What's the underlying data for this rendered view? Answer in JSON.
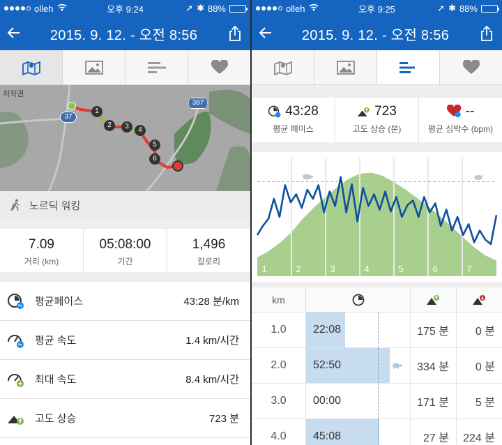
{
  "status_left": {
    "carrier": "olleh",
    "time": "오후 9:24",
    "battery": "88%"
  },
  "status_right": {
    "carrier": "olleh",
    "time": "오후 9:25",
    "battery": "88%"
  },
  "title_left": "2015. 9. 12. - 오전 8:56",
  "title_right": "2015. 9. 12. - 오전 8:56",
  "map": {
    "area_label": "처작권",
    "road_37": "37",
    "road_387": "387",
    "markers": [
      "1",
      "2",
      "3",
      "4",
      "5",
      "6"
    ]
  },
  "activity_type": "노르딕 워킹",
  "summary": [
    {
      "value": "7.09",
      "label": "거리 (km)"
    },
    {
      "value": "05:08:00",
      "label": "기간"
    },
    {
      "value": "1,496",
      "label": "칼로리"
    }
  ],
  "stats": [
    {
      "name": "평균페이스",
      "value": "43:28 분/km"
    },
    {
      "name": "평균 속도",
      "value": "1.4 km/시간"
    },
    {
      "name": "최대 속도",
      "value": "8.4 km/시간"
    },
    {
      "name": "고도 상승",
      "value": "723 분"
    }
  ],
  "metrics": [
    {
      "value": "43:28",
      "label": "평균 페이스"
    },
    {
      "value": "723",
      "label": "고도 상승 (분)"
    },
    {
      "value": "--",
      "label": "평균 심박수 (bpm)"
    }
  ],
  "chart_data": {
    "type": "area",
    "categories": [
      "1",
      "2",
      "3",
      "4",
      "5",
      "6",
      "7"
    ],
    "elevation": [
      0.18,
      0.24,
      0.32,
      0.42,
      0.55,
      0.66,
      0.76,
      0.85,
      0.93,
      0.98,
      0.99,
      0.96,
      0.9,
      0.83,
      0.75,
      0.67,
      0.58,
      0.48,
      0.38,
      0.28,
      0.2,
      0.15
    ],
    "pace": [
      0.3,
      0.4,
      0.48,
      0.7,
      0.5,
      0.85,
      0.66,
      0.75,
      0.6,
      0.8,
      0.7,
      0.85,
      0.55,
      0.78,
      0.62,
      0.94,
      0.55,
      0.86,
      0.45,
      0.82,
      0.62,
      0.75,
      0.58,
      0.78,
      0.56,
      0.72,
      0.5,
      0.63,
      0.68,
      0.5,
      0.72,
      0.55,
      0.65,
      0.4,
      0.58,
      0.35,
      0.5,
      0.3,
      0.42,
      0.22,
      0.35,
      0.25,
      0.2,
      0.52
    ],
    "reference_line": 0.85,
    "colors": {
      "elevation": "#a9cf8f",
      "pace": "#0d4f9c"
    }
  },
  "splits": {
    "headers": {
      "km": "km"
    },
    "rows": [
      {
        "km": "1.0",
        "pace": "22:08",
        "pace_fraction": 0.37,
        "up": "175 분",
        "down": "0 분"
      },
      {
        "km": "2.0",
        "pace": "52:50",
        "pace_fraction": 0.8,
        "up": "334 분",
        "down": "0 분"
      },
      {
        "km": "3.0",
        "pace": "00:00",
        "pace_fraction": 0.0,
        "up": "171 분",
        "down": "5 분"
      },
      {
        "km": "4.0",
        "pace": "45:08",
        "pace_fraction": 0.7,
        "up": "27 분",
        "down": "224 분"
      }
    ]
  },
  "colors": {
    "brand": "#1565c0",
    "route": "#e53935",
    "route_start": "#8bc34a"
  }
}
